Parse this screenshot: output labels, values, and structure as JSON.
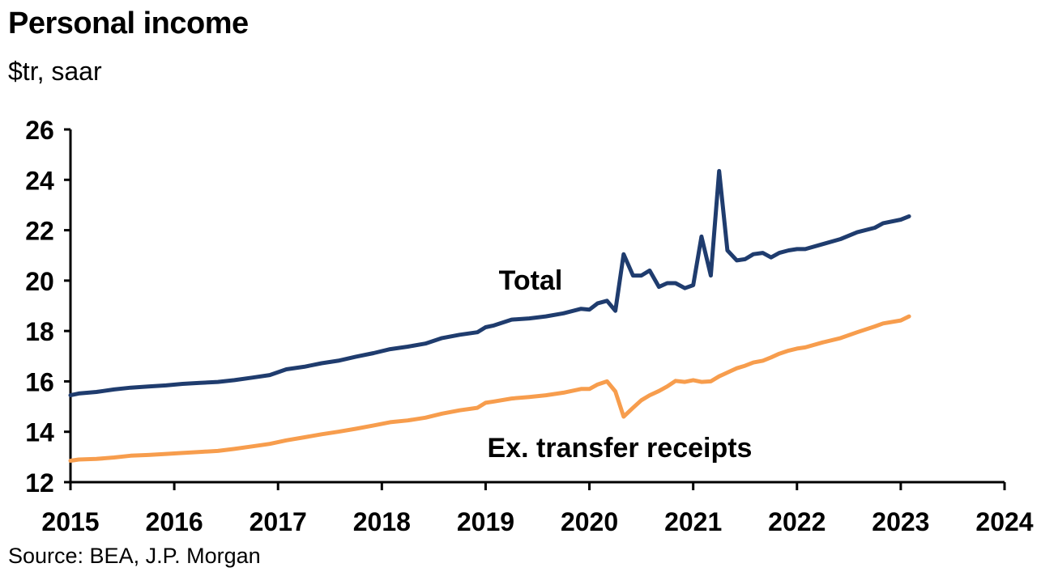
{
  "title": "Personal income",
  "subtitle": "$tr, saar",
  "source": "Source: BEA, J.P. Morgan",
  "colors": {
    "total": "#1f3c6e",
    "ex_transfer": "#f79d4d",
    "axis": "#000000"
  },
  "chart_data": {
    "type": "line",
    "title": "Personal income",
    "ylabel": "$tr, saar",
    "ylim": [
      12,
      26
    ],
    "yticks": [
      12,
      14,
      16,
      18,
      20,
      22,
      24,
      26
    ],
    "xlim": [
      2015,
      2024
    ],
    "xticks": [
      "2015",
      "2016",
      "2017",
      "2018",
      "2019",
      "2020",
      "2021",
      "2022",
      "2023",
      "2024"
    ],
    "grid": false,
    "series": [
      {
        "name": "Total",
        "points": [
          [
            2015.0,
            15.45
          ],
          [
            2015.08,
            15.52
          ],
          [
            2015.25,
            15.58
          ],
          [
            2015.42,
            15.68
          ],
          [
            2015.58,
            15.75
          ],
          [
            2015.75,
            15.8
          ],
          [
            2015.92,
            15.84
          ],
          [
            2016.08,
            15.9
          ],
          [
            2016.25,
            15.94
          ],
          [
            2016.42,
            15.98
          ],
          [
            2016.58,
            16.05
          ],
          [
            2016.75,
            16.15
          ],
          [
            2016.92,
            16.25
          ],
          [
            2017.08,
            16.48
          ],
          [
            2017.25,
            16.58
          ],
          [
            2017.42,
            16.72
          ],
          [
            2017.58,
            16.82
          ],
          [
            2017.75,
            16.98
          ],
          [
            2017.92,
            17.12
          ],
          [
            2018.08,
            17.28
          ],
          [
            2018.25,
            17.38
          ],
          [
            2018.42,
            17.5
          ],
          [
            2018.58,
            17.72
          ],
          [
            2018.75,
            17.85
          ],
          [
            2018.92,
            17.95
          ],
          [
            2019.0,
            18.15
          ],
          [
            2019.08,
            18.22
          ],
          [
            2019.25,
            18.45
          ],
          [
            2019.42,
            18.5
          ],
          [
            2019.58,
            18.58
          ],
          [
            2019.75,
            18.7
          ],
          [
            2019.92,
            18.88
          ],
          [
            2020.0,
            18.85
          ],
          [
            2020.08,
            19.1
          ],
          [
            2020.17,
            19.2
          ],
          [
            2020.25,
            18.8
          ],
          [
            2020.33,
            21.05
          ],
          [
            2020.42,
            20.2
          ],
          [
            2020.5,
            20.2
          ],
          [
            2020.58,
            20.4
          ],
          [
            2020.67,
            19.75
          ],
          [
            2020.75,
            19.9
          ],
          [
            2020.83,
            19.9
          ],
          [
            2020.92,
            19.7
          ],
          [
            2021.0,
            19.82
          ],
          [
            2021.08,
            21.75
          ],
          [
            2021.17,
            20.2
          ],
          [
            2021.25,
            24.35
          ],
          [
            2021.33,
            21.2
          ],
          [
            2021.42,
            20.8
          ],
          [
            2021.5,
            20.85
          ],
          [
            2021.58,
            21.05
          ],
          [
            2021.67,
            21.1
          ],
          [
            2021.75,
            20.92
          ],
          [
            2021.83,
            21.1
          ],
          [
            2021.92,
            21.2
          ],
          [
            2022.0,
            21.25
          ],
          [
            2022.08,
            21.25
          ],
          [
            2022.25,
            21.45
          ],
          [
            2022.42,
            21.65
          ],
          [
            2022.58,
            21.92
          ],
          [
            2022.75,
            22.1
          ],
          [
            2022.83,
            22.28
          ],
          [
            2023.0,
            22.42
          ],
          [
            2023.08,
            22.55
          ]
        ]
      },
      {
        "name": "Ex. transfer receipts",
        "points": [
          [
            2015.0,
            12.85
          ],
          [
            2015.08,
            12.9
          ],
          [
            2015.25,
            12.92
          ],
          [
            2015.42,
            12.98
          ],
          [
            2015.58,
            13.05
          ],
          [
            2015.75,
            13.08
          ],
          [
            2015.92,
            13.12
          ],
          [
            2016.08,
            13.16
          ],
          [
            2016.25,
            13.2
          ],
          [
            2016.42,
            13.24
          ],
          [
            2016.58,
            13.32
          ],
          [
            2016.75,
            13.42
          ],
          [
            2016.92,
            13.52
          ],
          [
            2017.08,
            13.66
          ],
          [
            2017.25,
            13.78
          ],
          [
            2017.42,
            13.9
          ],
          [
            2017.58,
            14.0
          ],
          [
            2017.75,
            14.12
          ],
          [
            2017.92,
            14.25
          ],
          [
            2018.08,
            14.38
          ],
          [
            2018.25,
            14.45
          ],
          [
            2018.42,
            14.56
          ],
          [
            2018.58,
            14.72
          ],
          [
            2018.75,
            14.85
          ],
          [
            2018.92,
            14.95
          ],
          [
            2019.0,
            15.15
          ],
          [
            2019.08,
            15.2
          ],
          [
            2019.25,
            15.32
          ],
          [
            2019.42,
            15.38
          ],
          [
            2019.58,
            15.45
          ],
          [
            2019.75,
            15.55
          ],
          [
            2019.92,
            15.7
          ],
          [
            2020.0,
            15.7
          ],
          [
            2020.08,
            15.88
          ],
          [
            2020.17,
            16.0
          ],
          [
            2020.25,
            15.6
          ],
          [
            2020.33,
            14.6
          ],
          [
            2020.42,
            14.95
          ],
          [
            2020.5,
            15.25
          ],
          [
            2020.58,
            15.45
          ],
          [
            2020.67,
            15.62
          ],
          [
            2020.75,
            15.8
          ],
          [
            2020.83,
            16.02
          ],
          [
            2020.92,
            15.98
          ],
          [
            2021.0,
            16.05
          ],
          [
            2021.08,
            15.98
          ],
          [
            2021.17,
            16.0
          ],
          [
            2021.25,
            16.2
          ],
          [
            2021.33,
            16.35
          ],
          [
            2021.42,
            16.52
          ],
          [
            2021.5,
            16.62
          ],
          [
            2021.58,
            16.75
          ],
          [
            2021.67,
            16.82
          ],
          [
            2021.75,
            16.95
          ],
          [
            2021.83,
            17.1
          ],
          [
            2021.92,
            17.22
          ],
          [
            2022.0,
            17.3
          ],
          [
            2022.08,
            17.35
          ],
          [
            2022.25,
            17.55
          ],
          [
            2022.42,
            17.72
          ],
          [
            2022.58,
            17.95
          ],
          [
            2022.75,
            18.18
          ],
          [
            2022.83,
            18.3
          ],
          [
            2023.0,
            18.42
          ],
          [
            2023.08,
            18.58
          ]
        ]
      }
    ],
    "annotations": [
      {
        "text": "Total",
        "x": 2020.0,
        "y": 20.0,
        "series": 0
      },
      {
        "text": "Ex. transfer receipts",
        "x": 2020.0,
        "y": 13.5,
        "series": 1
      }
    ]
  }
}
